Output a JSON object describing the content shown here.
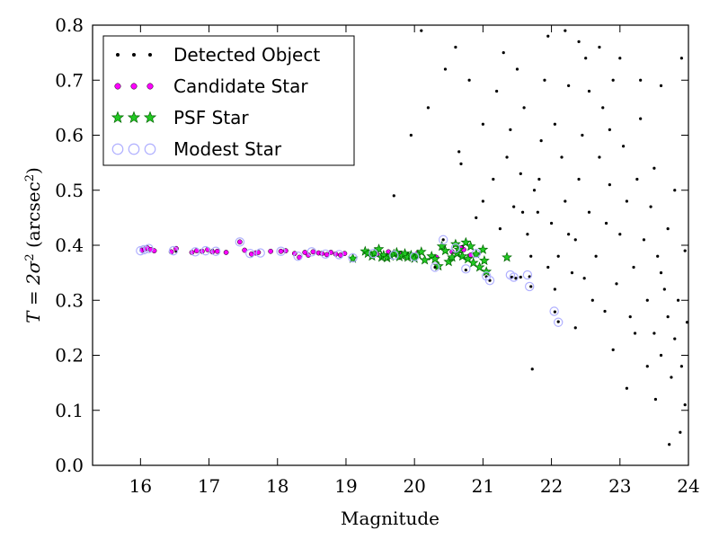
{
  "chart_data": {
    "type": "scatter",
    "xlabel": "Magnitude",
    "ylabel": {
      "prefix": "T = 2σ",
      "exp1": "2",
      "mid": " (arcsec",
      "exp2": "2",
      "suffix": ")"
    },
    "xlim": [
      15.3,
      24.0
    ],
    "ylim": [
      0.0,
      0.8
    ],
    "xticks": [
      16,
      17,
      18,
      19,
      20,
      21,
      22,
      23,
      24
    ],
    "yticks": [
      0.0,
      0.1,
      0.2,
      0.3,
      0.4,
      0.5,
      0.6,
      0.7,
      0.8
    ],
    "grid": false,
    "legend_position": "top-left",
    "series": [
      {
        "name": "Detected Object",
        "marker": "dot",
        "color": "#000000",
        "points": [
          [
            16.02,
            0.391
          ],
          [
            16.08,
            0.394
          ],
          [
            16.15,
            0.392
          ],
          [
            16.52,
            0.389
          ],
          [
            16.88,
            0.39
          ],
          [
            17.05,
            0.391
          ],
          [
            17.45,
            0.406
          ],
          [
            17.72,
            0.387
          ],
          [
            18.05,
            0.389
          ],
          [
            18.4,
            0.387
          ],
          [
            18.65,
            0.385
          ],
          [
            18.95,
            0.383
          ],
          [
            19.3,
            0.385
          ],
          [
            19.55,
            0.382
          ],
          [
            19.8,
            0.38
          ],
          [
            20.05,
            0.383
          ],
          [
            20.3,
            0.36
          ],
          [
            20.42,
            0.41
          ],
          [
            20.55,
            0.39
          ],
          [
            20.7,
            0.398
          ],
          [
            20.75,
            0.355
          ],
          [
            20.95,
            0.385
          ],
          [
            21.05,
            0.343
          ],
          [
            21.1,
            0.336
          ],
          [
            21.42,
            0.342
          ],
          [
            21.48,
            0.34
          ],
          [
            21.55,
            0.342
          ],
          [
            21.68,
            0.343
          ],
          [
            21.7,
            0.325
          ],
          [
            22.05,
            0.279
          ],
          [
            22.1,
            0.261
          ],
          [
            21.72,
            0.175
          ],
          [
            20.68,
            0.548
          ],
          [
            20.65,
            0.57
          ],
          [
            19.7,
            0.49
          ],
          [
            19.95,
            0.6
          ],
          [
            20.2,
            0.65
          ],
          [
            20.45,
            0.72
          ],
          [
            20.1,
            0.79
          ],
          [
            20.8,
            0.7
          ],
          [
            20.6,
            0.76
          ],
          [
            21.0,
            0.62
          ],
          [
            21.2,
            0.68
          ],
          [
            21.3,
            0.75
          ],
          [
            21.0,
            0.48
          ],
          [
            21.35,
            0.56
          ],
          [
            21.15,
            0.52
          ],
          [
            20.9,
            0.45
          ],
          [
            21.25,
            0.43
          ],
          [
            21.45,
            0.47
          ],
          [
            21.4,
            0.61
          ],
          [
            21.55,
            0.53
          ],
          [
            21.6,
            0.65
          ],
          [
            21.5,
            0.72
          ],
          [
            21.65,
            0.42
          ],
          [
            21.7,
            0.38
          ],
          [
            21.8,
            0.46
          ],
          [
            21.85,
            0.59
          ],
          [
            21.9,
            0.7
          ],
          [
            21.95,
            0.78
          ],
          [
            21.82,
            0.52
          ],
          [
            22.0,
            0.44
          ],
          [
            22.05,
            0.62
          ],
          [
            22.1,
            0.38
          ],
          [
            22.15,
            0.56
          ],
          [
            22.2,
            0.48
          ],
          [
            22.25,
            0.69
          ],
          [
            22.3,
            0.35
          ],
          [
            22.35,
            0.41
          ],
          [
            22.4,
            0.52
          ],
          [
            22.45,
            0.6
          ],
          [
            22.5,
            0.74
          ],
          [
            22.55,
            0.46
          ],
          [
            22.6,
            0.3
          ],
          [
            22.65,
            0.38
          ],
          [
            22.7,
            0.56
          ],
          [
            22.75,
            0.65
          ],
          [
            22.8,
            0.44
          ],
          [
            22.85,
            0.51
          ],
          [
            22.9,
            0.7
          ],
          [
            22.95,
            0.33
          ],
          [
            23.0,
            0.42
          ],
          [
            23.05,
            0.58
          ],
          [
            23.1,
            0.48
          ],
          [
            23.15,
            0.27
          ],
          [
            23.2,
            0.36
          ],
          [
            23.25,
            0.52
          ],
          [
            23.3,
            0.63
          ],
          [
            23.35,
            0.41
          ],
          [
            23.4,
            0.3
          ],
          [
            23.45,
            0.47
          ],
          [
            23.5,
            0.24
          ],
          [
            23.55,
            0.38
          ],
          [
            23.6,
            0.2
          ],
          [
            23.65,
            0.32
          ],
          [
            23.7,
            0.27
          ],
          [
            23.75,
            0.16
          ],
          [
            23.8,
            0.23
          ],
          [
            23.85,
            0.3
          ],
          [
            23.9,
            0.18
          ],
          [
            23.95,
            0.11
          ],
          [
            23.72,
            0.038
          ],
          [
            23.88,
            0.06
          ],
          [
            22.2,
            0.79
          ],
          [
            22.4,
            0.77
          ],
          [
            22.7,
            0.76
          ],
          [
            23.0,
            0.74
          ],
          [
            23.3,
            0.7
          ],
          [
            23.6,
            0.69
          ],
          [
            23.9,
            0.74
          ],
          [
            23.5,
            0.54
          ],
          [
            23.7,
            0.43
          ],
          [
            23.95,
            0.39
          ],
          [
            22.35,
            0.25
          ],
          [
            22.9,
            0.21
          ],
          [
            23.4,
            0.18
          ],
          [
            23.1,
            0.14
          ],
          [
            23.6,
            0.35
          ],
          [
            23.8,
            0.5
          ],
          [
            22.85,
            0.61
          ],
          [
            22.55,
            0.68
          ],
          [
            22.25,
            0.42
          ],
          [
            21.95,
            0.36
          ],
          [
            21.75,
            0.5
          ],
          [
            21.58,
            0.46
          ],
          [
            22.05,
            0.32
          ],
          [
            22.48,
            0.34
          ],
          [
            22.78,
            0.28
          ],
          [
            23.22,
            0.24
          ],
          [
            23.52,
            0.12
          ],
          [
            23.98,
            0.26
          ]
        ]
      },
      {
        "name": "Candidate Star",
        "marker": "circle",
        "color": "#ff00ff",
        "points": [
          [
            16.02,
            0.391
          ],
          [
            16.06,
            0.393
          ],
          [
            16.1,
            0.395
          ],
          [
            16.15,
            0.392
          ],
          [
            16.2,
            0.39
          ],
          [
            16.45,
            0.388
          ],
          [
            16.52,
            0.394
          ],
          [
            16.75,
            0.387
          ],
          [
            16.82,
            0.39
          ],
          [
            16.9,
            0.389
          ],
          [
            16.98,
            0.392
          ],
          [
            17.05,
            0.388
          ],
          [
            17.12,
            0.389
          ],
          [
            17.25,
            0.387
          ],
          [
            17.45,
            0.406
          ],
          [
            17.52,
            0.391
          ],
          [
            17.62,
            0.384
          ],
          [
            17.68,
            0.386
          ],
          [
            17.72,
            0.387
          ],
          [
            17.9,
            0.389
          ],
          [
            18.05,
            0.389
          ],
          [
            18.12,
            0.39
          ],
          [
            18.25,
            0.385
          ],
          [
            18.32,
            0.378
          ],
          [
            18.4,
            0.387
          ],
          [
            18.45,
            0.382
          ],
          [
            18.52,
            0.388
          ],
          [
            18.6,
            0.386
          ],
          [
            18.65,
            0.385
          ],
          [
            18.72,
            0.383
          ],
          [
            18.78,
            0.387
          ],
          [
            18.85,
            0.384
          ],
          [
            18.92,
            0.382
          ],
          [
            18.98,
            0.385
          ],
          [
            19.45,
            0.384
          ],
          [
            19.62,
            0.388
          ],
          [
            19.8,
            0.385
          ],
          [
            19.9,
            0.382
          ],
          [
            20.05,
            0.386
          ],
          [
            20.32,
            0.378
          ],
          [
            20.42,
            0.395
          ],
          [
            20.55,
            0.388
          ],
          [
            20.68,
            0.395
          ],
          [
            20.72,
            0.392
          ],
          [
            20.82,
            0.382
          ]
        ]
      },
      {
        "name": "PSF Star",
        "marker": "star",
        "color": "#22c822",
        "points": [
          [
            19.1,
            0.376
          ],
          [
            19.28,
            0.389
          ],
          [
            19.32,
            0.385
          ],
          [
            19.38,
            0.38
          ],
          [
            19.42,
            0.386
          ],
          [
            19.48,
            0.393
          ],
          [
            19.52,
            0.378
          ],
          [
            19.55,
            0.382
          ],
          [
            19.6,
            0.377
          ],
          [
            19.65,
            0.38
          ],
          [
            19.7,
            0.384
          ],
          [
            19.74,
            0.387
          ],
          [
            19.78,
            0.379
          ],
          [
            19.82,
            0.381
          ],
          [
            19.86,
            0.385
          ],
          [
            19.9,
            0.378
          ],
          [
            19.95,
            0.382
          ],
          [
            20.0,
            0.376
          ],
          [
            20.05,
            0.383
          ],
          [
            20.1,
            0.388
          ],
          [
            20.15,
            0.373
          ],
          [
            20.25,
            0.38
          ],
          [
            20.3,
            0.375
          ],
          [
            20.35,
            0.362
          ],
          [
            20.4,
            0.398
          ],
          [
            20.45,
            0.39
          ],
          [
            20.5,
            0.37
          ],
          [
            20.55,
            0.378
          ],
          [
            20.6,
            0.402
          ],
          [
            20.62,
            0.385
          ],
          [
            20.65,
            0.392
          ],
          [
            20.7,
            0.38
          ],
          [
            20.75,
            0.405
          ],
          [
            20.78,
            0.375
          ],
          [
            20.82,
            0.398
          ],
          [
            20.86,
            0.368
          ],
          [
            20.9,
            0.384
          ],
          [
            20.95,
            0.36
          ],
          [
            21.0,
            0.392
          ],
          [
            21.02,
            0.372
          ],
          [
            21.05,
            0.352
          ],
          [
            21.35,
            0.378
          ]
        ]
      },
      {
        "name": "Modest Star",
        "marker": "open-circle",
        "color": "#b0b0ff",
        "points": [
          [
            16.0,
            0.39
          ],
          [
            16.05,
            0.392
          ],
          [
            16.12,
            0.394
          ],
          [
            16.48,
            0.39
          ],
          [
            16.8,
            0.388
          ],
          [
            16.95,
            0.39
          ],
          [
            17.1,
            0.389
          ],
          [
            17.45,
            0.406
          ],
          [
            17.6,
            0.385
          ],
          [
            17.75,
            0.386
          ],
          [
            18.05,
            0.389
          ],
          [
            18.3,
            0.38
          ],
          [
            18.5,
            0.388
          ],
          [
            18.7,
            0.384
          ],
          [
            18.9,
            0.383
          ],
          [
            19.1,
            0.377
          ],
          [
            19.4,
            0.385
          ],
          [
            19.7,
            0.382
          ],
          [
            20.0,
            0.379
          ],
          [
            20.3,
            0.36
          ],
          [
            20.42,
            0.41
          ],
          [
            20.6,
            0.395
          ],
          [
            20.75,
            0.357
          ],
          [
            20.9,
            0.385
          ],
          [
            21.05,
            0.344
          ],
          [
            21.1,
            0.336
          ],
          [
            21.4,
            0.346
          ],
          [
            21.45,
            0.342
          ],
          [
            21.65,
            0.346
          ],
          [
            21.68,
            0.325
          ],
          [
            22.04,
            0.28
          ],
          [
            22.1,
            0.26
          ]
        ]
      }
    ]
  }
}
